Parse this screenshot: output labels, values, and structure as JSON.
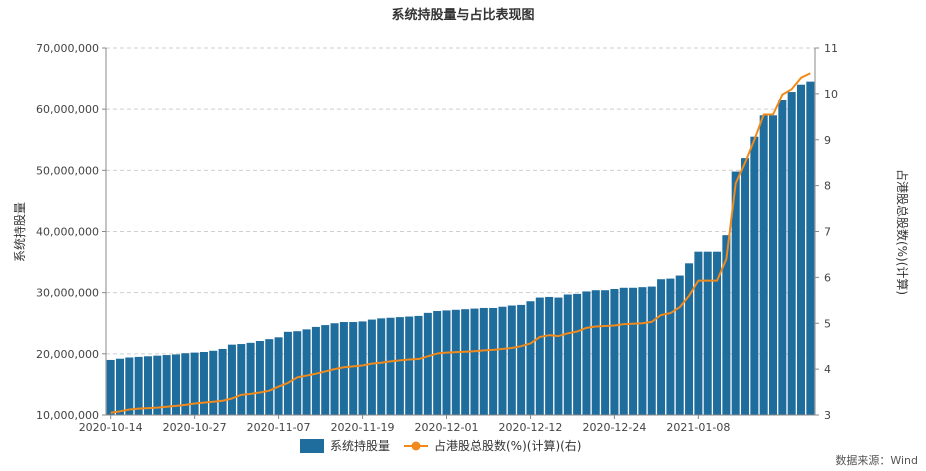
{
  "chart_data": {
    "type": "bar",
    "title": "系统持股量与占比表现图",
    "ylabel": "系统持股量",
    "y2label": "占港股总股数(%)(计算)",
    "ylim": [
      10000000,
      70000000
    ],
    "y_ticks": [
      10000000,
      20000000,
      30000000,
      40000000,
      50000000,
      60000000,
      70000000
    ],
    "y_tick_labels": [
      "10,000,000",
      "20,000,000",
      "30,000,000",
      "40,000,000",
      "50,000,000",
      "60,000,000",
      "70,000,000"
    ],
    "y2lim": [
      3,
      11
    ],
    "y2_ticks": [
      3,
      4,
      5,
      6,
      7,
      8,
      9,
      10,
      11
    ],
    "y2_tick_labels": [
      "3",
      "4",
      "5",
      "6",
      "7",
      "8",
      "9",
      "10",
      "11"
    ],
    "x_tick_labels": [
      "2020-10-14",
      "2020-10-27",
      "2020-11-07",
      "2020-11-19",
      "2020-12-01",
      "2020-12-12",
      "2020-12-24",
      "2021-01-08"
    ],
    "x_tick_indices": [
      0,
      9,
      18,
      27,
      36,
      45,
      54,
      63
    ],
    "grid": true,
    "legend_position": "bottom",
    "series": [
      {
        "name": "系统持股量",
        "kind": "bar",
        "axis": "left",
        "color": "#1f6d9c",
        "values": [
          19000000,
          19200000,
          19400000,
          19500000,
          19600000,
          19700000,
          19800000,
          19900000,
          20100000,
          20200000,
          20300000,
          20500000,
          20800000,
          21500000,
          21600000,
          21800000,
          22100000,
          22400000,
          22700000,
          23600000,
          23700000,
          24000000,
          24400000,
          24700000,
          25000000,
          25200000,
          25200000,
          25300000,
          25600000,
          25800000,
          25900000,
          26000000,
          26100000,
          26200000,
          26700000,
          27000000,
          27100000,
          27200000,
          27300000,
          27400000,
          27500000,
          27500000,
          27700000,
          27900000,
          28000000,
          28600000,
          29200000,
          29300000,
          29200000,
          29700000,
          29800000,
          30200000,
          30400000,
          30400000,
          30600000,
          30800000,
          30800000,
          30900000,
          31000000,
          32200000,
          32300000,
          32800000,
          34800000,
          36700000,
          36700000,
          36700000,
          39400000,
          49800000,
          52000000,
          55500000,
          59000000,
          59000000,
          61500000,
          62800000,
          64000000,
          64500000
        ]
      },
      {
        "name": "占港股总股数(%)(计算)(右)",
        "kind": "line",
        "axis": "right",
        "color": "#f08a1c",
        "values": [
          3.05,
          3.08,
          3.12,
          3.14,
          3.15,
          3.16,
          3.18,
          3.2,
          3.22,
          3.25,
          3.27,
          3.29,
          3.31,
          3.36,
          3.44,
          3.46,
          3.49,
          3.53,
          3.62,
          3.7,
          3.82,
          3.86,
          3.9,
          3.95,
          4.0,
          4.04,
          4.06,
          4.08,
          4.12,
          4.14,
          4.17,
          4.19,
          4.21,
          4.22,
          4.28,
          4.34,
          4.36,
          4.37,
          4.38,
          4.39,
          4.41,
          4.42,
          4.44,
          4.46,
          4.5,
          4.56,
          4.7,
          4.74,
          4.72,
          4.78,
          4.82,
          4.9,
          4.93,
          4.94,
          4.95,
          4.98,
          4.99,
          5.0,
          5.03,
          5.18,
          5.22,
          5.35,
          5.6,
          5.93,
          5.93,
          5.93,
          6.4,
          8.05,
          8.5,
          9.0,
          9.55,
          9.55,
          9.98,
          10.1,
          10.35,
          10.45
        ]
      }
    ]
  },
  "legend": {
    "bar_label": "系统持股量",
    "line_label": "占港股总股数(%)(计算)(右)"
  },
  "source": "数据来源：Wind"
}
